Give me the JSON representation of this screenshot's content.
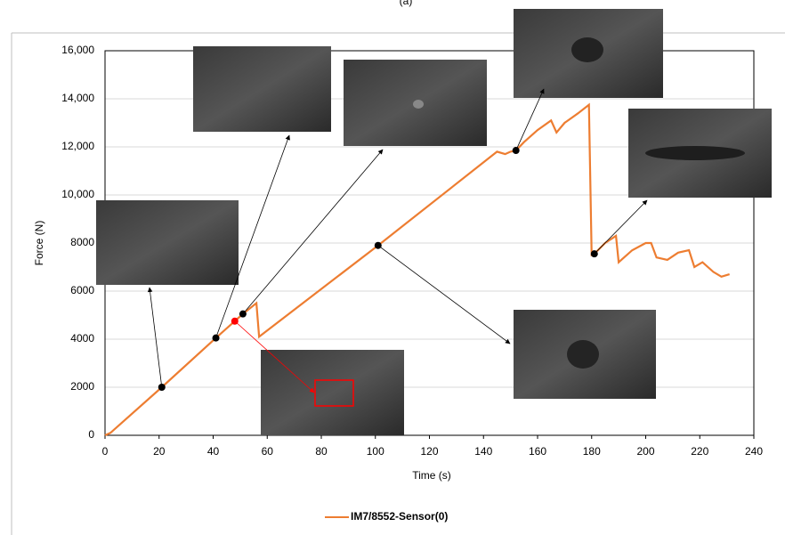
{
  "chart_data": {
    "type": "line",
    "title": "(a)",
    "x_label": "Time (s)",
    "y_label": "Force (N)",
    "xlim": [
      0,
      240
    ],
    "xticks": [
      0,
      20,
      40,
      60,
      80,
      100,
      120,
      140,
      160,
      180,
      200,
      220,
      240
    ],
    "ylim": [
      0,
      16000
    ],
    "yticks": [
      0,
      2000,
      4000,
      6000,
      8000,
      {
        "value": 10000,
        "label": "10,000"
      },
      {
        "value": 12000,
        "label": "12,000"
      },
      {
        "value": 14000,
        "label": "14,000"
      },
      {
        "value": 16000,
        "label": "16,000"
      }
    ],
    "grid": true,
    "legend": "bottom",
    "series": [
      {
        "name": "IM7/8552-Sensor(0)",
        "color": "#ed7d31",
        "x": [
          0,
          2,
          21,
          41,
          48,
          51,
          56,
          57,
          101,
          145,
          148,
          150,
          152,
          155,
          160,
          165,
          167,
          170,
          175,
          179,
          180,
          181,
          185,
          189,
          190,
          195,
          200,
          202,
          204,
          208,
          212,
          216,
          218,
          221,
          225,
          228,
          231
        ],
        "values": [
          0,
          100,
          2000,
          4050,
          4750,
          5050,
          5500,
          4100,
          7900,
          11800,
          11700,
          11800,
          11850,
          12200,
          12700,
          13100,
          12600,
          13000,
          13400,
          13750,
          7500,
          7550,
          8000,
          8300,
          7200,
          7700,
          8000,
          8000,
          7400,
          7300,
          7600,
          7700,
          7000,
          7200,
          6800,
          6600,
          6700
        ]
      }
    ],
    "markers": {
      "x": [
        21,
        41,
        51,
        101,
        152,
        181,
        48
      ],
      "values": [
        2000,
        4050,
        5050,
        7900,
        11850,
        7550,
        4750
      ],
      "colors": [
        "#000000",
        "#000000",
        "#000000",
        "#000000",
        "#000000",
        "#000000",
        "#ff0000"
      ]
    }
  }
}
